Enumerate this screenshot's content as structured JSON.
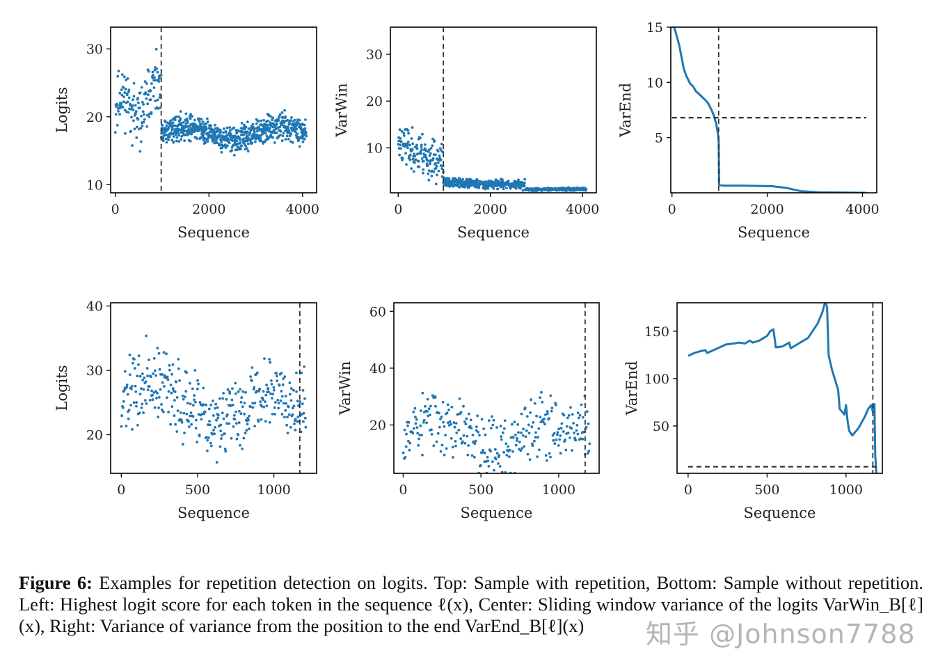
{
  "chart_data": [
    {
      "type": "scatter",
      "ylabel": "Logits",
      "xlabel": "Sequence",
      "xlim": [
        -100,
        4300
      ],
      "ylim": [
        8.8,
        33.2
      ],
      "xticks": [
        0,
        2000,
        4000
      ],
      "yticks": [
        10,
        20,
        30
      ],
      "vline": 980,
      "seed": 11,
      "segments": [
        {
          "x0": 0,
          "x1": 980,
          "n": 140,
          "mean_start": 21,
          "mean_end": 22.5,
          "spread": 3.6,
          "bump": 2
        },
        {
          "x0": 980,
          "x1": 4080,
          "n": 720,
          "mean_start": 17.5,
          "mean_end": 17.6,
          "spread": 1.6,
          "bump": 1
        }
      ]
    },
    {
      "type": "scatter",
      "ylabel": "VarWin",
      "xlabel": "Sequence",
      "xlim": [
        -170,
        4300
      ],
      "ylim": [
        0.4,
        35.8
      ],
      "xticks": [
        0,
        2000,
        4000
      ],
      "yticks": [
        10,
        20,
        30
      ],
      "vline": 980,
      "seed": 23,
      "segments": [
        {
          "x0": 0,
          "x1": 980,
          "n": 150,
          "mean_start": 11,
          "mean_end": 6.5,
          "spread": 3.8,
          "bump": 0
        },
        {
          "x0": 980,
          "x1": 2750,
          "n": 380,
          "mean_start": 2.6,
          "mean_end": 2.1,
          "spread": 0.8,
          "bump": 0
        },
        {
          "x0": 2750,
          "x1": 4080,
          "n": 260,
          "mean_start": 1.1,
          "mean_end": 1.2,
          "spread": 0.25,
          "bump": 0
        }
      ]
    },
    {
      "type": "line",
      "ylabel": "VarEnd",
      "xlabel": "Sequence",
      "xlim": [
        -25,
        4300
      ],
      "ylim": [
        0,
        15
      ],
      "xticks": [
        0,
        2000,
        4000
      ],
      "yticks": [
        5,
        10,
        15
      ],
      "vline": 980,
      "hline": 6.8,
      "points": [
        [
          0,
          15.4
        ],
        [
          60,
          14.8
        ],
        [
          150,
          13.4
        ],
        [
          250,
          11.2
        ],
        [
          300,
          10.6
        ],
        [
          380,
          9.9
        ],
        [
          450,
          9.6
        ],
        [
          500,
          9.2
        ],
        [
          580,
          8.9
        ],
        [
          650,
          8.6
        ],
        [
          700,
          8.4
        ],
        [
          760,
          8.1
        ],
        [
          820,
          7.6
        ],
        [
          880,
          7.0
        ],
        [
          930,
          6.2
        ],
        [
          970,
          5.2
        ],
        [
          980,
          4.6
        ],
        [
          990,
          0.7
        ],
        [
          1100,
          0.65
        ],
        [
          1500,
          0.65
        ],
        [
          2100,
          0.6
        ],
        [
          2400,
          0.45
        ],
        [
          2700,
          0.15
        ],
        [
          3100,
          0.05
        ],
        [
          4080,
          0.0
        ]
      ]
    },
    {
      "type": "scatter",
      "ylabel": "Logits",
      "xlabel": "Sequence",
      "xlim": [
        -70,
        1280
      ],
      "ylim": [
        14,
        40.5
      ],
      "xticks": [
        0,
        500,
        1000
      ],
      "yticks": [
        20,
        30,
        40
      ],
      "vline": 1170,
      "seed": 37,
      "segments": [
        {
          "x0": 0,
          "x1": 1210,
          "n": 390,
          "mean_start": 25,
          "mean_end": 24,
          "spread": 4.8,
          "bump": 3
        }
      ]
    },
    {
      "type": "scatter",
      "ylabel": "VarWin",
      "xlabel": "Sequence",
      "xlim": [
        -60,
        1260
      ],
      "ylim": [
        3,
        63
      ],
      "xticks": [
        0,
        500,
        1000
      ],
      "yticks": [
        20,
        40,
        60
      ],
      "vline": 1170,
      "seed": 53,
      "segments": [
        {
          "x0": 0,
          "x1": 1200,
          "n": 300,
          "mean_start": 18,
          "mean_end": 16,
          "spread": 10,
          "bump": 4
        }
      ]
    },
    {
      "type": "line",
      "ylabel": "VarEnd",
      "xlabel": "Sequence",
      "xlim": [
        -70,
        1230
      ],
      "ylim": [
        0,
        180
      ],
      "xticks": [
        0,
        500,
        1000
      ],
      "yticks": [
        50,
        100,
        150
      ],
      "vline": 1170,
      "hline": 7,
      "points": [
        [
          0,
          124
        ],
        [
          40,
          127
        ],
        [
          80,
          129
        ],
        [
          110,
          130
        ],
        [
          120,
          127
        ],
        [
          160,
          130
        ],
        [
          200,
          133
        ],
        [
          240,
          136
        ],
        [
          290,
          137
        ],
        [
          320,
          138
        ],
        [
          360,
          137
        ],
        [
          390,
          140
        ],
        [
          410,
          138
        ],
        [
          450,
          140
        ],
        [
          480,
          143
        ],
        [
          500,
          145
        ],
        [
          520,
          150
        ],
        [
          540,
          152
        ],
        [
          550,
          140
        ],
        [
          555,
          133
        ],
        [
          600,
          134
        ],
        [
          640,
          138
        ],
        [
          650,
          132
        ],
        [
          700,
          137
        ],
        [
          760,
          143
        ],
        [
          820,
          158
        ],
        [
          850,
          170
        ],
        [
          870,
          182
        ],
        [
          880,
          175
        ],
        [
          890,
          125
        ],
        [
          910,
          110
        ],
        [
          950,
          88
        ],
        [
          960,
          68
        ],
        [
          990,
          62
        ],
        [
          1000,
          72
        ],
        [
          1010,
          55
        ],
        [
          1020,
          45
        ],
        [
          1040,
          40
        ],
        [
          1080,
          48
        ],
        [
          1120,
          60
        ],
        [
          1140,
          68
        ],
        [
          1160,
          72
        ],
        [
          1170,
          65
        ],
        [
          1180,
          73
        ],
        [
          1185,
          20
        ],
        [
          1190,
          5
        ],
        [
          1193,
          0
        ]
      ]
    }
  ],
  "caption": {
    "label": "Figure 6:",
    "line1": "Examples for repetition detection on logits.  Top: Sample with repetition, Bottom: Sample without",
    "line2": "repetition. Left: Highest logit score for each token in the sequence ℓ(x), Center: Sliding window variance of the logits",
    "line3": "VarWin_B[ℓ](x), Right: Variance of variance from the position to the end VarEnd_B[ℓ](x)"
  },
  "watermark": "知乎 @Johnson7788",
  "colors": {
    "series": "#1f77b4",
    "reference": "#333333",
    "frame": "#000000"
  }
}
